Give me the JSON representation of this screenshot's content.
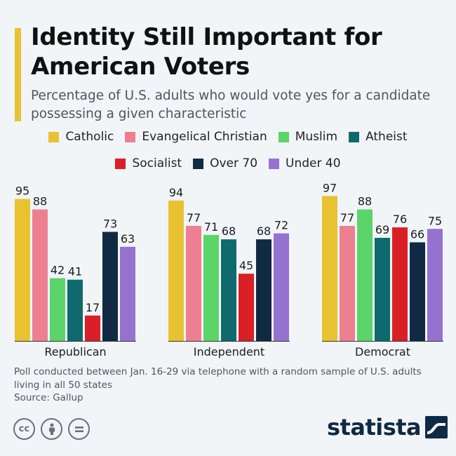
{
  "title": "Identity Still Important for American Voters",
  "subtitle": "Percentage of U.S. adults who would vote yes for a candidate possessing a given characteristic",
  "source_note": "Poll conducted between Jan. 16-29 via telephone with a random sample of U.S. adults living in all 50 states",
  "source": "Source: Gallup",
  "brand": "statista",
  "license_icons": [
    "creative-commons-icon",
    "attribution-icon",
    "no-derivatives-icon"
  ],
  "chart_data": {
    "type": "bar",
    "categories": [
      "Republican",
      "Independent",
      "Democrat"
    ],
    "series": [
      {
        "name": "Catholic",
        "color": "#e8c231",
        "values": [
          95,
          94,
          97
        ]
      },
      {
        "name": "Evangelical Christian",
        "color": "#ee7f91",
        "values": [
          88,
          77,
          77
        ]
      },
      {
        "name": "Muslim",
        "color": "#5bd46a",
        "values": [
          42,
          71,
          88
        ]
      },
      {
        "name": "Atheist",
        "color": "#0e6a6c",
        "values": [
          41,
          68,
          69
        ]
      },
      {
        "name": "Socialist",
        "color": "#da1f27",
        "values": [
          17,
          45,
          76
        ]
      },
      {
        "name": "Over 70",
        "color": "#102a44",
        "values": [
          73,
          68,
          66
        ]
      },
      {
        "name": "Under 40",
        "color": "#9672d0",
        "values": [
          63,
          72,
          75
        ]
      }
    ],
    "ylim": [
      0,
      100
    ],
    "legend_position": "top-center",
    "grid": false
  }
}
